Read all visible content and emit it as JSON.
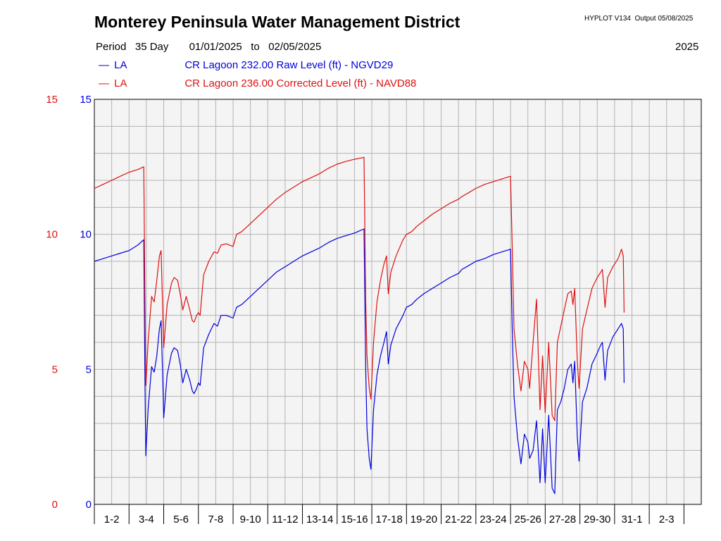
{
  "header": {
    "title": "Monterey Peninsula Water Management District",
    "version": "HYPLOT V134  Output 05/08/2025",
    "period_label": "Period",
    "period_days": "35 Day",
    "date_from": "01/01/2025",
    "to_label": "to",
    "date_to": "02/05/2025",
    "year": "2025"
  },
  "legend": [
    {
      "dash": "—",
      "code": "LA",
      "label": "CR Lagoon  232.00 Raw Level (ft) - NGVD29",
      "color": "#0000dd"
    },
    {
      "dash": "—",
      "code": "LA",
      "label": "CR Lagoon  236.00 Corrected Level (ft) - NAVD88",
      "color": "#dd1111"
    }
  ],
  "chart_data": {
    "type": "line",
    "x_unit": "day",
    "xlim": [
      0,
      35
    ],
    "ylim": [
      0,
      15
    ],
    "y_ticks": [
      0,
      5,
      10,
      15
    ],
    "left_axis_color": "#dd1111",
    "right_axis_color": "#0000dd",
    "grid": true,
    "x_tick_labels": [
      "1-2",
      "3-4",
      "5-6",
      "7-8",
      "9-10",
      "11-12",
      "13-14",
      "15-16",
      "17-18",
      "19-20",
      "21-22",
      "23-24",
      "25-26",
      "27-28",
      "29-30",
      "31-1",
      "2-3"
    ],
    "series": [
      {
        "name": "CR Lagoon  232.00 Raw Level (ft) - NGVD29",
        "color": "#0000dd",
        "points": [
          [
            0.0,
            9.0
          ],
          [
            0.5,
            9.1
          ],
          [
            1.0,
            9.2
          ],
          [
            1.5,
            9.3
          ],
          [
            2.0,
            9.4
          ],
          [
            2.5,
            9.6
          ],
          [
            2.85,
            9.8
          ],
          [
            2.92,
            4.5
          ],
          [
            2.97,
            1.8
          ],
          [
            3.1,
            3.5
          ],
          [
            3.3,
            5.1
          ],
          [
            3.45,
            4.9
          ],
          [
            3.6,
            5.5
          ],
          [
            3.75,
            6.5
          ],
          [
            3.85,
            6.8
          ],
          [
            3.95,
            4.5
          ],
          [
            4.0,
            3.2
          ],
          [
            4.2,
            4.8
          ],
          [
            4.45,
            5.6
          ],
          [
            4.6,
            5.8
          ],
          [
            4.8,
            5.7
          ],
          [
            4.95,
            5.2
          ],
          [
            5.1,
            4.5
          ],
          [
            5.3,
            5.0
          ],
          [
            5.5,
            4.6
          ],
          [
            5.65,
            4.2
          ],
          [
            5.75,
            4.1
          ],
          [
            5.9,
            4.3
          ],
          [
            6.0,
            4.5
          ],
          [
            6.1,
            4.4
          ],
          [
            6.3,
            5.8
          ],
          [
            6.6,
            6.3
          ],
          [
            6.9,
            6.7
          ],
          [
            7.1,
            6.6
          ],
          [
            7.3,
            7.0
          ],
          [
            7.6,
            7.0
          ],
          [
            8.0,
            6.9
          ],
          [
            8.2,
            7.3
          ],
          [
            8.5,
            7.4
          ],
          [
            9.0,
            7.7
          ],
          [
            9.5,
            8.0
          ],
          [
            10.0,
            8.3
          ],
          [
            10.5,
            8.6
          ],
          [
            11.0,
            8.8
          ],
          [
            11.5,
            9.0
          ],
          [
            12.0,
            9.2
          ],
          [
            12.5,
            9.35
          ],
          [
            13.0,
            9.5
          ],
          [
            13.5,
            9.7
          ],
          [
            14.0,
            9.85
          ],
          [
            14.5,
            9.95
          ],
          [
            15.0,
            10.05
          ],
          [
            15.55,
            10.2
          ],
          [
            15.65,
            5.0
          ],
          [
            15.72,
            2.8
          ],
          [
            15.85,
            1.7
          ],
          [
            15.95,
            1.3
          ],
          [
            16.1,
            3.5
          ],
          [
            16.3,
            4.8
          ],
          [
            16.5,
            5.5
          ],
          [
            16.7,
            6.0
          ],
          [
            16.85,
            6.4
          ],
          [
            16.95,
            5.2
          ],
          [
            17.1,
            5.9
          ],
          [
            17.4,
            6.5
          ],
          [
            17.8,
            7.0
          ],
          [
            18.0,
            7.3
          ],
          [
            18.3,
            7.4
          ],
          [
            18.6,
            7.6
          ],
          [
            19.0,
            7.8
          ],
          [
            19.5,
            8.0
          ],
          [
            20.0,
            8.2
          ],
          [
            20.5,
            8.4
          ],
          [
            21.0,
            8.55
          ],
          [
            21.2,
            8.7
          ],
          [
            21.6,
            8.85
          ],
          [
            22.0,
            9.0
          ],
          [
            22.5,
            9.1
          ],
          [
            23.0,
            9.25
          ],
          [
            23.5,
            9.35
          ],
          [
            24.0,
            9.45
          ],
          [
            24.1,
            6.5
          ],
          [
            24.2,
            4.0
          ],
          [
            24.4,
            2.5
          ],
          [
            24.6,
            1.5
          ],
          [
            24.8,
            2.6
          ],
          [
            25.0,
            2.3
          ],
          [
            25.1,
            1.7
          ],
          [
            25.3,
            2.0
          ],
          [
            25.5,
            3.1
          ],
          [
            25.7,
            0.8
          ],
          [
            25.85,
            2.8
          ],
          [
            26.0,
            0.8
          ],
          [
            26.2,
            3.3
          ],
          [
            26.4,
            0.6
          ],
          [
            26.55,
            0.4
          ],
          [
            26.7,
            3.5
          ],
          [
            26.9,
            3.8
          ],
          [
            27.1,
            4.3
          ],
          [
            27.3,
            5.0
          ],
          [
            27.5,
            5.2
          ],
          [
            27.6,
            4.5
          ],
          [
            27.7,
            5.3
          ],
          [
            27.85,
            2.5
          ],
          [
            27.95,
            1.6
          ],
          [
            28.15,
            3.8
          ],
          [
            28.4,
            4.3
          ],
          [
            28.7,
            5.2
          ],
          [
            29.0,
            5.6
          ],
          [
            29.2,
            5.9
          ],
          [
            29.3,
            6.0
          ],
          [
            29.45,
            4.6
          ],
          [
            29.6,
            5.7
          ],
          [
            29.9,
            6.2
          ],
          [
            30.2,
            6.5
          ],
          [
            30.4,
            6.7
          ],
          [
            30.5,
            6.5
          ],
          [
            30.55,
            4.5
          ]
        ]
      },
      {
        "name": "CR Lagoon  236.00 Corrected Level (ft) - NAVD88",
        "color": "#dd1111",
        "points": [
          [
            0.0,
            11.7
          ],
          [
            0.5,
            11.85
          ],
          [
            1.0,
            12.0
          ],
          [
            1.5,
            12.15
          ],
          [
            2.0,
            12.3
          ],
          [
            2.5,
            12.4
          ],
          [
            2.85,
            12.5
          ],
          [
            2.92,
            7.5
          ],
          [
            2.97,
            4.4
          ],
          [
            3.1,
            6.0
          ],
          [
            3.3,
            7.7
          ],
          [
            3.45,
            7.5
          ],
          [
            3.6,
            8.3
          ],
          [
            3.75,
            9.2
          ],
          [
            3.85,
            9.4
          ],
          [
            3.95,
            7.0
          ],
          [
            4.0,
            5.8
          ],
          [
            4.2,
            7.4
          ],
          [
            4.45,
            8.2
          ],
          [
            4.6,
            8.4
          ],
          [
            4.8,
            8.3
          ],
          [
            4.95,
            7.8
          ],
          [
            5.1,
            7.2
          ],
          [
            5.3,
            7.7
          ],
          [
            5.5,
            7.2
          ],
          [
            5.65,
            6.8
          ],
          [
            5.75,
            6.75
          ],
          [
            5.9,
            7.0
          ],
          [
            6.0,
            7.1
          ],
          [
            6.1,
            7.0
          ],
          [
            6.3,
            8.5
          ],
          [
            6.6,
            9.0
          ],
          [
            6.9,
            9.35
          ],
          [
            7.1,
            9.3
          ],
          [
            7.3,
            9.6
          ],
          [
            7.6,
            9.65
          ],
          [
            8.0,
            9.55
          ],
          [
            8.2,
            10.0
          ],
          [
            8.5,
            10.1
          ],
          [
            9.0,
            10.4
          ],
          [
            9.5,
            10.7
          ],
          [
            10.0,
            11.0
          ],
          [
            10.5,
            11.3
          ],
          [
            11.0,
            11.55
          ],
          [
            11.5,
            11.75
          ],
          [
            12.0,
            11.95
          ],
          [
            12.5,
            12.1
          ],
          [
            13.0,
            12.25
          ],
          [
            13.5,
            12.45
          ],
          [
            14.0,
            12.6
          ],
          [
            14.5,
            12.7
          ],
          [
            15.0,
            12.78
          ],
          [
            15.55,
            12.85
          ],
          [
            15.65,
            7.5
          ],
          [
            15.72,
            5.5
          ],
          [
            15.85,
            4.3
          ],
          [
            15.95,
            3.9
          ],
          [
            16.1,
            6.0
          ],
          [
            16.3,
            7.5
          ],
          [
            16.5,
            8.3
          ],
          [
            16.7,
            8.9
          ],
          [
            16.85,
            9.2
          ],
          [
            16.95,
            7.8
          ],
          [
            17.1,
            8.6
          ],
          [
            17.4,
            9.2
          ],
          [
            17.8,
            9.8
          ],
          [
            18.0,
            10.0
          ],
          [
            18.3,
            10.1
          ],
          [
            18.6,
            10.3
          ],
          [
            19.0,
            10.5
          ],
          [
            19.5,
            10.75
          ],
          [
            20.0,
            10.95
          ],
          [
            20.5,
            11.15
          ],
          [
            21.0,
            11.3
          ],
          [
            21.2,
            11.4
          ],
          [
            21.6,
            11.55
          ],
          [
            22.0,
            11.7
          ],
          [
            22.5,
            11.85
          ],
          [
            23.0,
            11.95
          ],
          [
            23.5,
            12.05
          ],
          [
            24.0,
            12.15
          ],
          [
            24.1,
            9.5
          ],
          [
            24.2,
            6.5
          ],
          [
            24.4,
            5.2
          ],
          [
            24.6,
            4.2
          ],
          [
            24.8,
            5.3
          ],
          [
            25.0,
            5.0
          ],
          [
            25.1,
            4.3
          ],
          [
            25.3,
            6.0
          ],
          [
            25.5,
            7.6
          ],
          [
            25.7,
            3.5
          ],
          [
            25.85,
            5.5
          ],
          [
            26.0,
            3.4
          ],
          [
            26.2,
            6.0
          ],
          [
            26.4,
            3.3
          ],
          [
            26.55,
            3.1
          ],
          [
            26.7,
            6.0
          ],
          [
            26.9,
            6.6
          ],
          [
            27.1,
            7.2
          ],
          [
            27.3,
            7.8
          ],
          [
            27.5,
            7.9
          ],
          [
            27.6,
            7.4
          ],
          [
            27.7,
            8.0
          ],
          [
            27.85,
            5.3
          ],
          [
            27.95,
            4.3
          ],
          [
            28.15,
            6.5
          ],
          [
            28.4,
            7.2
          ],
          [
            28.7,
            8.0
          ],
          [
            29.0,
            8.4
          ],
          [
            29.2,
            8.6
          ],
          [
            29.3,
            8.7
          ],
          [
            29.45,
            7.3
          ],
          [
            29.6,
            8.4
          ],
          [
            29.9,
            8.8
          ],
          [
            30.2,
            9.1
          ],
          [
            30.4,
            9.45
          ],
          [
            30.5,
            9.2
          ],
          [
            30.55,
            7.1
          ]
        ]
      }
    ]
  }
}
